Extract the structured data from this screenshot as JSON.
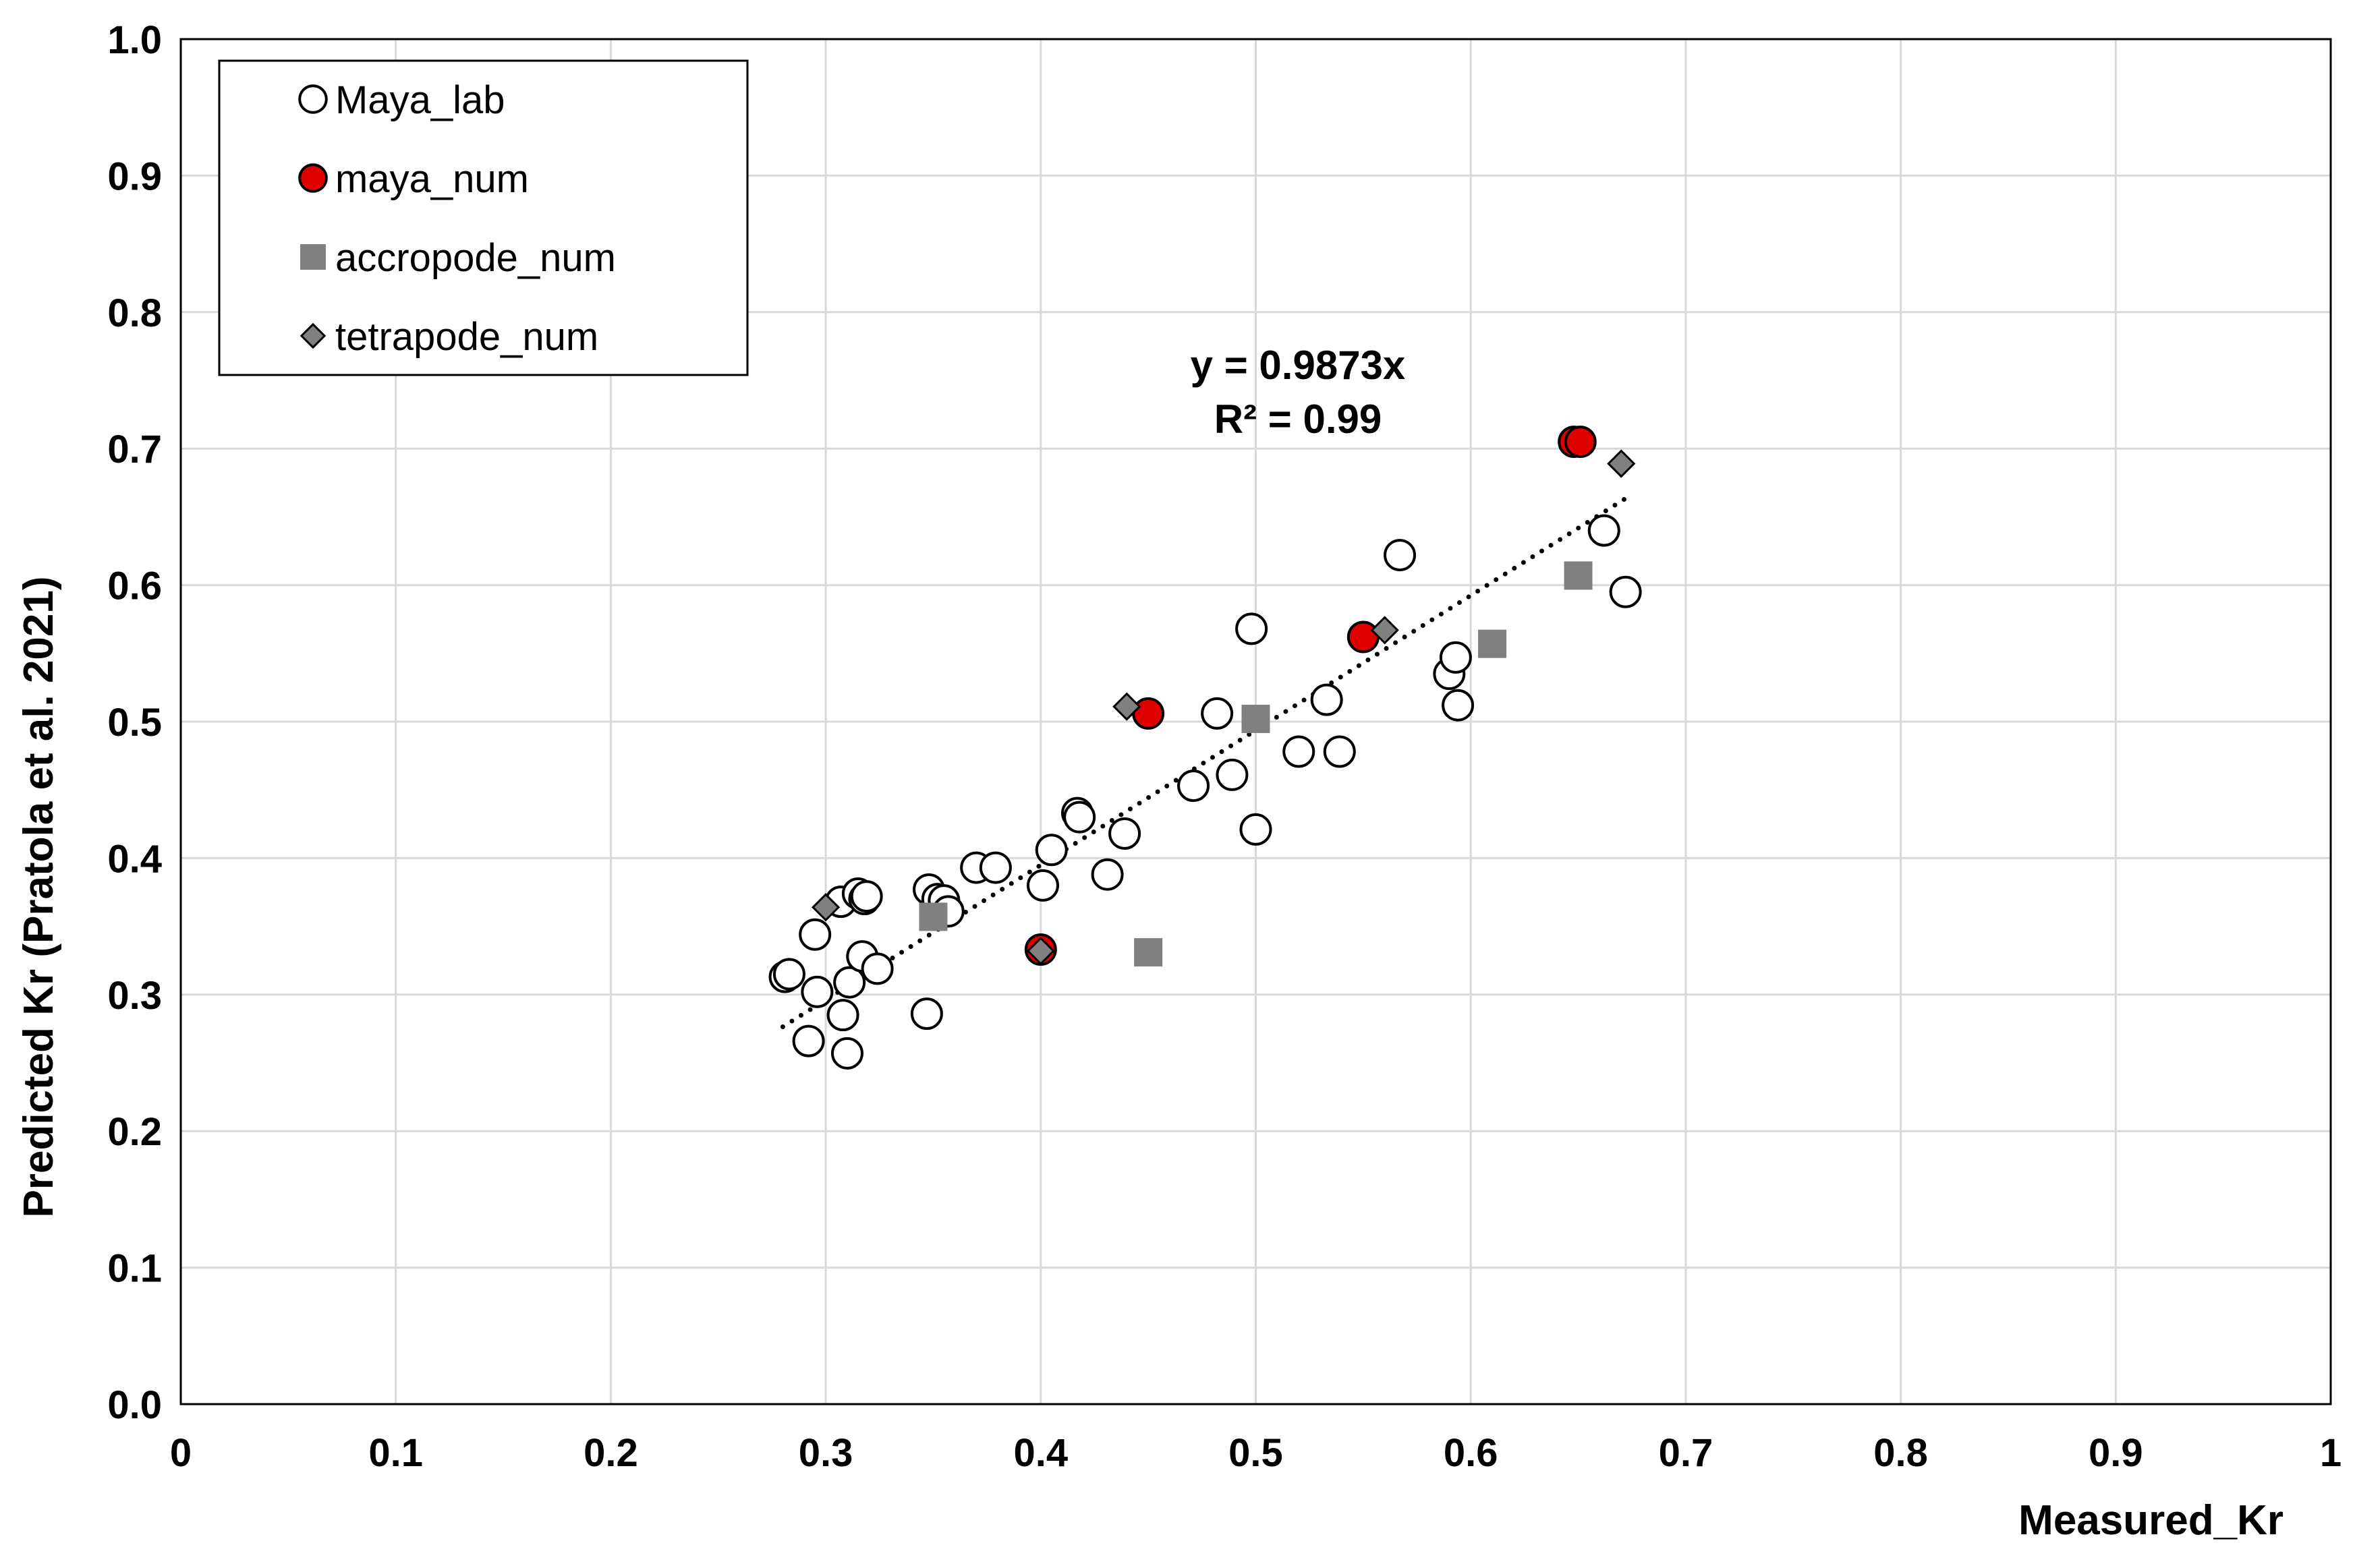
{
  "chart_data": {
    "type": "scatter",
    "title": "",
    "xlabel": "Measured_Kr",
    "ylabel": "Predicted Kr (Pratola et al. 2021)",
    "xlim": [
      0,
      1
    ],
    "ylim": [
      0,
      1
    ],
    "grid": true,
    "legend_position": "top-left",
    "x_ticks": [
      {
        "value": 0,
        "label": "0"
      },
      {
        "value": 0.1,
        "label": "0.1"
      },
      {
        "value": 0.2,
        "label": "0.2"
      },
      {
        "value": 0.3,
        "label": "0.3"
      },
      {
        "value": 0.4,
        "label": "0.4"
      },
      {
        "value": 0.5,
        "label": "0.5"
      },
      {
        "value": 0.6,
        "label": "0.6"
      },
      {
        "value": 0.7,
        "label": "0.7"
      },
      {
        "value": 0.8,
        "label": "0.8"
      },
      {
        "value": 0.9,
        "label": "0.9"
      },
      {
        "value": 1,
        "label": "1"
      }
    ],
    "y_ticks": [
      {
        "value": 0,
        "label": "0.0"
      },
      {
        "value": 0.1,
        "label": "0.1"
      },
      {
        "value": 0.2,
        "label": "0.2"
      },
      {
        "value": 0.3,
        "label": "0.3"
      },
      {
        "value": 0.4,
        "label": "0.4"
      },
      {
        "value": 0.5,
        "label": "0.5"
      },
      {
        "value": 0.6,
        "label": "0.6"
      },
      {
        "value": 0.7,
        "label": "0.7"
      },
      {
        "value": 0.8,
        "label": "0.8"
      },
      {
        "value": 0.9,
        "label": "0.9"
      },
      {
        "value": 1,
        "label": "1.0"
      }
    ],
    "series": [
      {
        "name": "Maya_lab",
        "marker": "circle-open",
        "color": "#ffffff",
        "stroke": "#000000",
        "points": [
          [
            0.281,
            0.313
          ],
          [
            0.283,
            0.315
          ],
          [
            0.292,
            0.266
          ],
          [
            0.295,
            0.344
          ],
          [
            0.296,
            0.302
          ],
          [
            0.307,
            0.368
          ],
          [
            0.308,
            0.285
          ],
          [
            0.31,
            0.257
          ],
          [
            0.311,
            0.309
          ],
          [
            0.315,
            0.374
          ],
          [
            0.317,
            0.328
          ],
          [
            0.318,
            0.37
          ],
          [
            0.319,
            0.372
          ],
          [
            0.324,
            0.319
          ],
          [
            0.347,
            0.286
          ],
          [
            0.348,
            0.377
          ],
          [
            0.352,
            0.37
          ],
          [
            0.355,
            0.369
          ],
          [
            0.357,
            0.361
          ],
          [
            0.37,
            0.393
          ],
          [
            0.379,
            0.393
          ],
          [
            0.401,
            0.38
          ],
          [
            0.405,
            0.406
          ],
          [
            0.417,
            0.433
          ],
          [
            0.418,
            0.43
          ],
          [
            0.431,
            0.388
          ],
          [
            0.439,
            0.418
          ],
          [
            0.471,
            0.453
          ],
          [
            0.482,
            0.506
          ],
          [
            0.489,
            0.461
          ],
          [
            0.498,
            0.568
          ],
          [
            0.5,
            0.421
          ],
          [
            0.52,
            0.478
          ],
          [
            0.533,
            0.516
          ],
          [
            0.539,
            0.478
          ],
          [
            0.567,
            0.622
          ],
          [
            0.59,
            0.535
          ],
          [
            0.593,
            0.547
          ],
          [
            0.594,
            0.512
          ],
          [
            0.662,
            0.64
          ],
          [
            0.672,
            0.595
          ]
        ]
      },
      {
        "name": "maya_num",
        "marker": "circle-filled",
        "color": "#e00000",
        "stroke": "#000000",
        "points": [
          [
            0.4,
            0.333
          ],
          [
            0.45,
            0.506
          ],
          [
            0.55,
            0.562
          ],
          [
            0.648,
            0.705
          ],
          [
            0.651,
            0.705
          ]
        ]
      },
      {
        "name": "accropode_num",
        "marker": "square",
        "color": "#808080",
        "stroke": "#808080",
        "points": [
          [
            0.35,
            0.357
          ],
          [
            0.45,
            0.331
          ],
          [
            0.5,
            0.502
          ],
          [
            0.61,
            0.557
          ],
          [
            0.65,
            0.607
          ]
        ]
      },
      {
        "name": "tetrapode_num",
        "marker": "diamond",
        "color": "#808080",
        "stroke": "#000000",
        "points": [
          [
            0.3,
            0.364
          ],
          [
            0.4,
            0.332
          ],
          [
            0.44,
            0.511
          ],
          [
            0.56,
            0.567
          ],
          [
            0.67,
            0.689
          ]
        ]
      }
    ],
    "trendline": {
      "type": "linear-through-origin",
      "slope": 0.9873,
      "x_range": [
        0.28,
        0.672
      ],
      "style": "dotted",
      "equation_label": "y = 0.9873x",
      "r2_label": "R² = 0.99"
    }
  }
}
